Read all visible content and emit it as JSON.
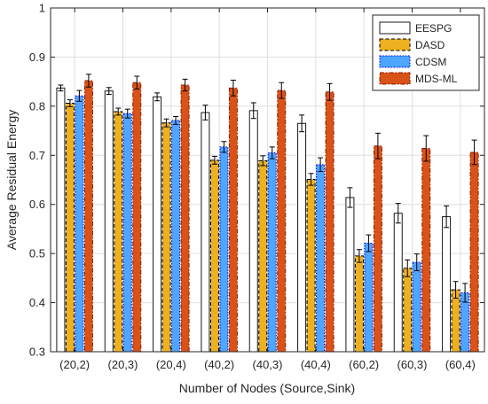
{
  "chart_data": {
    "type": "bar",
    "title": "",
    "xlabel": "Number of Nodes (Source,Sink)",
    "ylabel": "Average Residual Energy",
    "ylim": [
      0.3,
      1.0
    ],
    "yticks": [
      0.3,
      0.4,
      0.5,
      0.6,
      0.7,
      0.8,
      0.9,
      1.0
    ],
    "ytick_labels": [
      "0.3",
      "0.4",
      "0.5",
      "0.6",
      "0.7",
      "0.8",
      "0.9",
      "1"
    ],
    "grid": true,
    "legend_position": "top-right",
    "error_bars": true,
    "categories": [
      "(20,2)",
      "(20,3)",
      "(20,4)",
      "(40,2)",
      "(40,3)",
      "(40,4)",
      "(60,2)",
      "(60,3)",
      "(60,4)"
    ],
    "series": [
      {
        "name": "EESPG",
        "color": "#ffffff",
        "edge": "#1a1a1a",
        "style": "solid",
        "values": [
          0.837,
          0.831,
          0.819,
          0.787,
          0.791,
          0.765,
          0.614,
          0.582,
          0.575
        ],
        "errors": [
          0.006,
          0.007,
          0.008,
          0.015,
          0.016,
          0.017,
          0.02,
          0.02,
          0.022
        ]
      },
      {
        "name": "DASD",
        "color": "#edb120",
        "edge": "#000000",
        "style": "dashed",
        "values": [
          0.806,
          0.789,
          0.766,
          0.69,
          0.689,
          0.651,
          0.495,
          0.47,
          0.426
        ],
        "errors": [
          0.007,
          0.007,
          0.008,
          0.008,
          0.01,
          0.012,
          0.013,
          0.017,
          0.017
        ]
      },
      {
        "name": "CDSM",
        "color": "#4da6ff",
        "edge": "#0000ee",
        "style": "dotted",
        "values": [
          0.821,
          0.785,
          0.771,
          0.717,
          0.705,
          0.681,
          0.521,
          0.482,
          0.42
        ],
        "errors": [
          0.011,
          0.009,
          0.008,
          0.011,
          0.012,
          0.014,
          0.017,
          0.017,
          0.019
        ]
      },
      {
        "name": "MDS-ML",
        "color": "#d95319",
        "edge": "#8b1a00",
        "style": "dashdot",
        "values": [
          0.852,
          0.848,
          0.843,
          0.837,
          0.832,
          0.829,
          0.719,
          0.714,
          0.706
        ],
        "errors": [
          0.013,
          0.013,
          0.012,
          0.016,
          0.016,
          0.017,
          0.026,
          0.026,
          0.025
        ]
      }
    ]
  }
}
